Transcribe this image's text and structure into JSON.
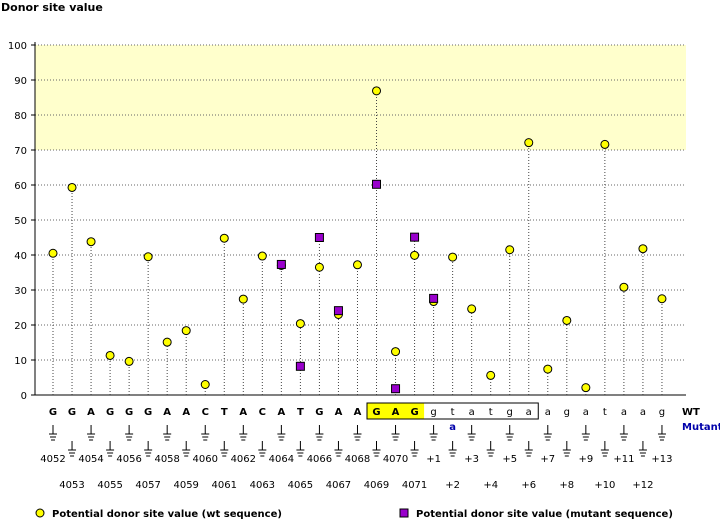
{
  "chart_data": {
    "type": "scatter",
    "title": "Donor site value",
    "ylabel": "Donor site value",
    "ylim": [
      0,
      100
    ],
    "yticks": [
      0,
      10,
      20,
      30,
      40,
      50,
      60,
      70,
      80,
      90,
      100
    ],
    "highlight_band": [
      70,
      100
    ],
    "sequence": [
      "G",
      "G",
      "A",
      "G",
      "G",
      "G",
      "A",
      "A",
      "C",
      "T",
      "A",
      "C",
      "A",
      "T",
      "G",
      "A",
      "A",
      "G",
      "A",
      "G",
      "g",
      "t",
      "a",
      "t",
      "g",
      "a",
      "a",
      "g",
      "a",
      "t",
      "a",
      "a",
      "g"
    ],
    "row_label_wt": "WT",
    "row_label_mutant": "Mutant",
    "boxed_range": [
      17,
      25
    ],
    "highlighted_range": [
      17,
      19
    ],
    "mutant_letter": {
      "index": 21,
      "letter": "a"
    },
    "position_labels": [
      "4052",
      "4053",
      "4054",
      "4055",
      "4056",
      "4057",
      "4058",
      "4059",
      "4060",
      "4061",
      "4062",
      "4063",
      "4064",
      "4065",
      "4066",
      "4067",
      "4068",
      "4069",
      "4070",
      "4071",
      "+1",
      "+2",
      "+3",
      "+4",
      "+5",
      "+6",
      "+7",
      "+8",
      "+9",
      "+10",
      "+11",
      "+12",
      "+13"
    ],
    "series": [
      {
        "name": "Potential donor site value (wt sequence)",
        "marker": "circle",
        "color": "#ffff00",
        "values": [
          40.5,
          59.3,
          43.8,
          11.3,
          9.6,
          39.5,
          15.1,
          18.4,
          3,
          44.8,
          27.4,
          39.7,
          37,
          20.4,
          36.5,
          23,
          37.2,
          86.9,
          12.4,
          39.9,
          26.7,
          39.4,
          24.6,
          5.6,
          41.5,
          72.1,
          7.4,
          21.3,
          2.1,
          71.6,
          30.8,
          41.8,
          27.5
        ]
      },
      {
        "name": "Potential donor site value (mutant sequence)",
        "marker": "square",
        "color": "#9900cc",
        "points": [
          {
            "index": 12,
            "value": 37.3
          },
          {
            "index": 13,
            "value": 8.2
          },
          {
            "index": 14,
            "value": 45
          },
          {
            "index": 15,
            "value": 24.1
          },
          {
            "index": 17,
            "value": 60.2
          },
          {
            "index": 18,
            "value": 1.8
          },
          {
            "index": 19,
            "value": 45.1
          },
          {
            "index": 20,
            "value": 27.6
          }
        ]
      }
    ]
  },
  "legend": {
    "wt_label": "Potential donor site value (wt sequence)",
    "mutant_label": "Potential donor site value (mutant sequence)"
  },
  "colors": {
    "band": "#ffffcc",
    "highlight": "#ffff00",
    "mutant": "#9900cc",
    "wt": "#ffff00",
    "mutant_text": "#0000aa"
  }
}
